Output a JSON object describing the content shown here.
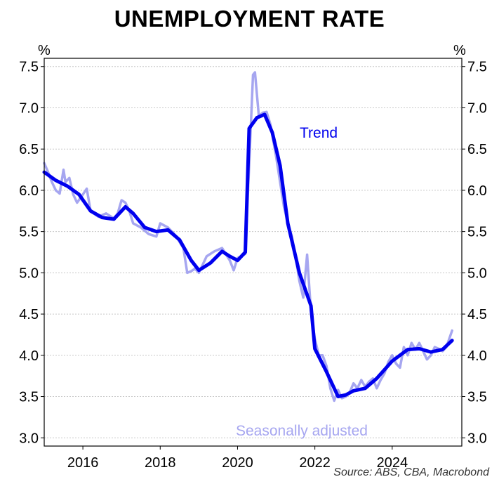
{
  "chart_data": {
    "type": "line",
    "title": "UNEMPLOYMENT RATE",
    "y_unit_left": "%",
    "y_unit_right": "%",
    "ylim": [
      2.9,
      7.6
    ],
    "xlim": [
      2015.0,
      2025.8
    ],
    "y_ticks": [
      "3.0",
      "3.5",
      "4.0",
      "4.5",
      "5.0",
      "5.5",
      "6.0",
      "6.5",
      "7.0",
      "7.5"
    ],
    "x_ticks": [
      "2016",
      "2018",
      "2020",
      "2022",
      "2024"
    ],
    "grid": true,
    "series": [
      {
        "name": "Trend",
        "color": "#0000ee",
        "x": [
          2015.0,
          2015.3,
          2015.6,
          2015.9,
          2016.2,
          2016.5,
          2016.8,
          2017.1,
          2017.3,
          2017.6,
          2017.9,
          2018.2,
          2018.5,
          2018.8,
          2019.0,
          2019.3,
          2019.6,
          2019.8,
          2020.0,
          2020.2,
          2020.3,
          2020.5,
          2020.7,
          2020.9,
          2021.1,
          2021.3,
          2021.6,
          2021.9,
          2022.0,
          2022.3,
          2022.6,
          2022.8,
          2023.0,
          2023.3,
          2023.6,
          2024.0,
          2024.4,
          2024.7,
          2025.0,
          2025.3,
          2025.55
        ],
        "values": [
          6.22,
          6.12,
          6.05,
          5.95,
          5.75,
          5.67,
          5.65,
          5.8,
          5.72,
          5.55,
          5.5,
          5.52,
          5.4,
          5.15,
          5.03,
          5.12,
          5.26,
          5.2,
          5.15,
          5.25,
          6.75,
          6.88,
          6.92,
          6.7,
          6.3,
          5.6,
          5.0,
          4.6,
          4.08,
          3.8,
          3.5,
          3.52,
          3.57,
          3.6,
          3.72,
          3.93,
          4.07,
          4.08,
          4.04,
          4.07,
          4.18
        ]
      },
      {
        "name": "Seasonally adjusted",
        "color": "#a6a6f0",
        "x": [
          2015.0,
          2015.1,
          2015.2,
          2015.3,
          2015.4,
          2015.5,
          2015.55,
          2015.65,
          2015.75,
          2015.85,
          2016.0,
          2016.1,
          2016.2,
          2016.4,
          2016.6,
          2016.8,
          2016.9,
          2017.0,
          2017.1,
          2017.2,
          2017.3,
          2017.5,
          2017.7,
          2017.9,
          2018.0,
          2018.2,
          2018.4,
          2018.6,
          2018.7,
          2018.8,
          2018.9,
          2019.0,
          2019.2,
          2019.4,
          2019.6,
          2019.8,
          2019.9,
          2020.0,
          2020.1,
          2020.2,
          2020.3,
          2020.4,
          2020.45,
          2020.55,
          2020.65,
          2020.75,
          2020.85,
          2021.0,
          2021.1,
          2021.2,
          2021.3,
          2021.4,
          2021.5,
          2021.6,
          2021.7,
          2021.8,
          2021.9,
          2022.0,
          2022.1,
          2022.2,
          2022.3,
          2022.4,
          2022.5,
          2022.6,
          2022.7,
          2022.8,
          2022.9,
          2023.0,
          2023.1,
          2023.2,
          2023.3,
          2023.4,
          2023.5,
          2023.6,
          2023.7,
          2023.8,
          2023.9,
          2024.0,
          2024.1,
          2024.2,
          2024.3,
          2024.4,
          2024.5,
          2024.6,
          2024.7,
          2024.8,
          2024.9,
          2025.0,
          2025.1,
          2025.2,
          2025.3,
          2025.4,
          2025.55
        ],
        "values": [
          6.33,
          6.22,
          6.1,
          6.0,
          5.96,
          6.25,
          6.1,
          6.15,
          5.95,
          5.85,
          5.95,
          6.02,
          5.75,
          5.68,
          5.72,
          5.66,
          5.72,
          5.88,
          5.85,
          5.75,
          5.6,
          5.55,
          5.47,
          5.44,
          5.6,
          5.55,
          5.45,
          5.3,
          5.0,
          5.02,
          5.05,
          5.0,
          5.2,
          5.26,
          5.3,
          5.15,
          5.03,
          5.18,
          5.2,
          5.23,
          6.3,
          7.4,
          7.43,
          6.9,
          6.94,
          6.95,
          6.8,
          6.4,
          6.1,
          5.8,
          5.6,
          5.45,
          5.2,
          4.9,
          4.7,
          5.22,
          4.52,
          4.2,
          4.0,
          4.0,
          3.87,
          3.6,
          3.45,
          3.58,
          3.48,
          3.5,
          3.55,
          3.66,
          3.6,
          3.7,
          3.62,
          3.68,
          3.72,
          3.6,
          3.7,
          3.78,
          3.92,
          4.0,
          3.9,
          3.85,
          4.1,
          4.0,
          4.15,
          4.07,
          4.15,
          4.05,
          3.95,
          4.0,
          4.1,
          4.08,
          4.05,
          4.1,
          4.3
        ]
      }
    ],
    "annotations": [
      "Trend",
      "Seasonally adjusted"
    ],
    "source": "Source: ABS, CBA, Macrobond"
  }
}
